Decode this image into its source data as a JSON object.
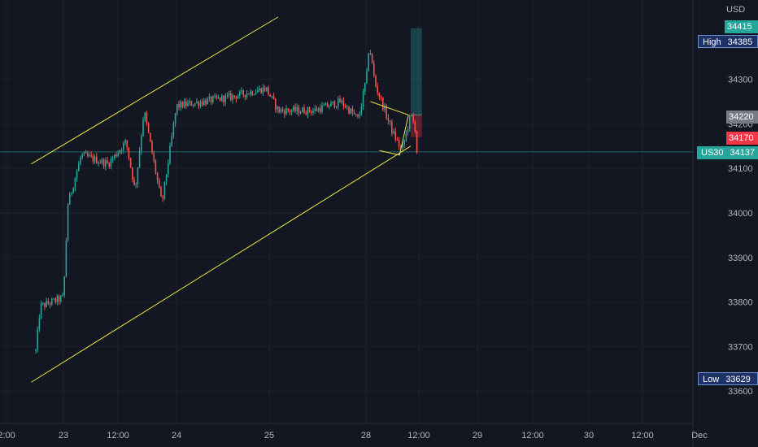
{
  "currency": "USD",
  "markers": {
    "target": {
      "value": "34415",
      "color": "#26a69a"
    },
    "high": {
      "label": "High",
      "value": "34385",
      "color": "#1e3266"
    },
    "entry": {
      "value": "34220",
      "color": "#787b86"
    },
    "stop": {
      "value": "34170",
      "color": "#f23645"
    },
    "current": {
      "label": "US30",
      "value": "34137",
      "color": "#26a69a"
    },
    "low": {
      "label": "Low",
      "value": "33629",
      "color": "#1e3266"
    }
  },
  "colors": {
    "background": "#131722",
    "up": "#26a69a",
    "down": "#ef5350",
    "trendline": "#f0e442",
    "axis_text": "#b2b5be"
  },
  "chart_data": {
    "type": "candlestick",
    "symbol": "US30",
    "currency": "USD",
    "x_ticks": [
      "2:00",
      "23",
      "12:00",
      "24",
      "25",
      "28",
      "12:00",
      "29",
      "12:00",
      "30",
      "12:00",
      "Dec"
    ],
    "y_ticks": [
      33600,
      33700,
      33800,
      33900,
      34000,
      34100,
      34200,
      34300
    ],
    "ylim": [
      33540,
      34480
    ],
    "last_price": 34137,
    "session_high": 34385,
    "session_low": 33629,
    "price_path": [
      {
        "t": "22 22:00",
        "price": 33690
      },
      {
        "t": "22 23:00",
        "price": 33790
      },
      {
        "t": "23 00:00",
        "price": 33810
      },
      {
        "t": "23 01:00",
        "price": 34020
      },
      {
        "t": "23 04:00",
        "price": 34130
      },
      {
        "t": "23 10:00",
        "price": 34110
      },
      {
        "t": "23 14:00",
        "price": 34160
      },
      {
        "t": "23 16:00",
        "price": 34050
      },
      {
        "t": "23 18:00",
        "price": 34230
      },
      {
        "t": "23 22:00",
        "price": 34020
      },
      {
        "t": "24 00:00",
        "price": 34240
      },
      {
        "t": "24 06:00",
        "price": 34250
      },
      {
        "t": "24 12:00",
        "price": 34260
      },
      {
        "t": "24 20:00",
        "price": 34280
      },
      {
        "t": "25 02:00",
        "price": 34230
      },
      {
        "t": "25 10:00",
        "price": 34230
      },
      {
        "t": "25 16:00",
        "price": 34250
      },
      {
        "t": "25 20:00",
        "price": 34210
      },
      {
        "t": "25 22:00",
        "price": 34320
      },
      {
        "t": "28 00:00",
        "price": 34370
      },
      {
        "t": "28 01:00",
        "price": 34360
      },
      {
        "t": "28 02:00",
        "price": 34290
      },
      {
        "t": "28 06:00",
        "price": 34180
      },
      {
        "t": "28 08:00",
        "price": 34140
      },
      {
        "t": "28 10:00",
        "price": 34220
      },
      {
        "t": "28 11:00",
        "price": 34190
      },
      {
        "t": "28 11:30",
        "price": 34137
      }
    ],
    "channel": {
      "upper": [
        {
          "t": "22 21:00",
          "price": 34110
        },
        {
          "t": "25 02:00",
          "price": 34440
        }
      ],
      "lower": [
        {
          "t": "22 21:00",
          "price": 33620
        },
        {
          "t": "28 10:00",
          "price": 34150
        }
      ]
    },
    "position": {
      "target": 34415,
      "entry": 34220,
      "stop": 34170,
      "start": "28 10:00",
      "end": "28 12:30"
    }
  }
}
